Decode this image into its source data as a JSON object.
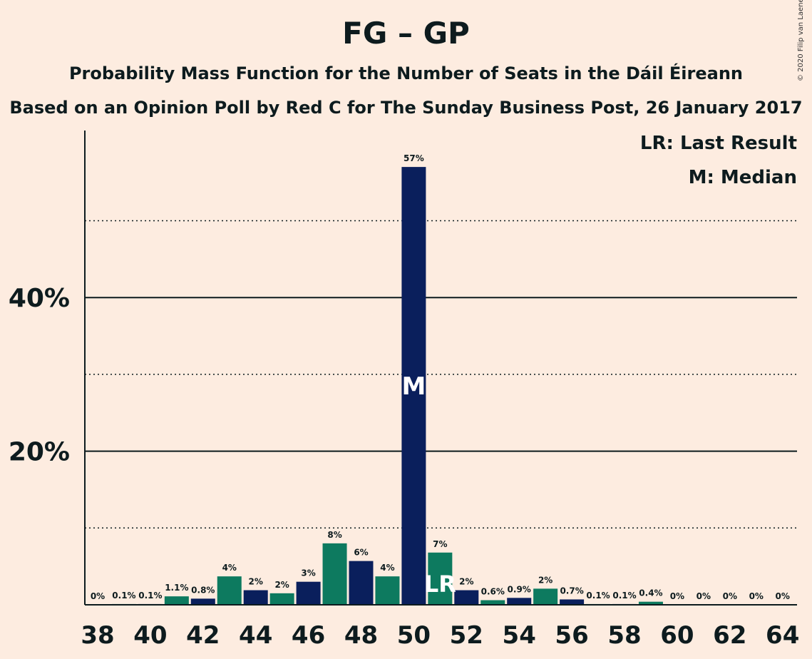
{
  "title": "FG – GP",
  "subtitle_1": "Probability Mass Function for the Number of Seats in the Dáil Éireann",
  "subtitle_2": "Based on an Opinion Poll by Red C for The Sunday Business Post, 26 January 2017",
  "copyright": "© 2020 Filip van Laenen",
  "legend": {
    "last_result": "LR: Last Result",
    "median": "M: Median"
  },
  "colors": {
    "background": "#fdece0",
    "bar_dark": "#0a1f5c",
    "bar_teal": "#0d7a5f",
    "text": "#0d1b1e"
  },
  "chart_data": {
    "type": "bar",
    "x": [
      38,
      39,
      40,
      41,
      42,
      43,
      44,
      45,
      46,
      47,
      48,
      49,
      50,
      51,
      52,
      53,
      54,
      55,
      56,
      57,
      58,
      59,
      60,
      61,
      62,
      63,
      64
    ],
    "values": [
      0,
      0.1,
      0.1,
      1.1,
      0.8,
      3.7,
      1.9,
      1.5,
      3,
      8,
      5.7,
      3.7,
      57,
      6.8,
      1.9,
      0.6,
      0.9,
      2.1,
      0.7,
      0.1,
      0.1,
      0.4,
      0,
      0,
      0,
      0,
      0
    ],
    "labels": [
      "0%",
      "0.1%",
      "0.1%",
      "1.1%",
      "0.8%",
      "4%",
      "2%",
      "2%",
      "3%",
      "8%",
      "6%",
      "4%",
      "57%",
      "7%",
      "2%",
      "0.6%",
      "0.9%",
      "2%",
      "0.7%",
      "0.1%",
      "0.1%",
      "0.4%",
      "0%",
      "0%",
      "0%",
      "0%",
      "0%"
    ],
    "x_ticks": [
      "38",
      "40",
      "42",
      "44",
      "46",
      "48",
      "50",
      "52",
      "54",
      "56",
      "58",
      "60",
      "62",
      "64"
    ],
    "y_ticks": [
      {
        "value": 20,
        "label": "20%"
      },
      {
        "value": 40,
        "label": "40%"
      }
    ],
    "minor_gridlines": [
      10,
      30,
      50
    ],
    "ylim": [
      0,
      62
    ],
    "median": 50,
    "median_marker": "M",
    "last_result": 51,
    "last_result_marker": "LR",
    "xlabel": "",
    "ylabel": ""
  }
}
